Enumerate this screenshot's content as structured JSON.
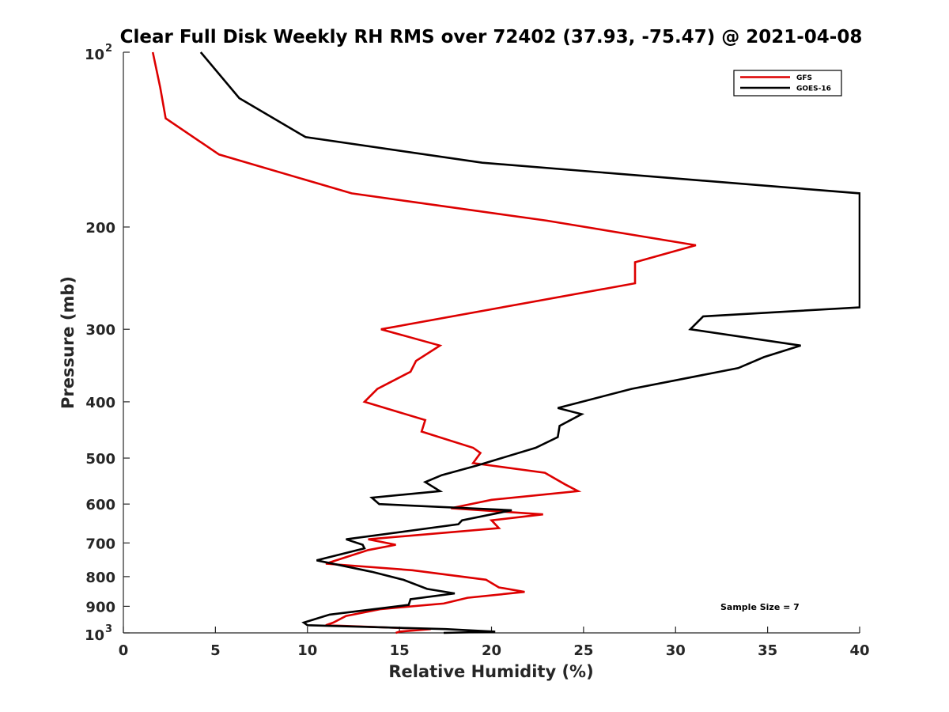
{
  "chart_data": {
    "type": "line",
    "title": "Clear Full Disk Weekly RH RMS over 72402 (37.93, -75.47) @ 2021-04-08",
    "xlabel": "Relative Humidity (%)",
    "ylabel": "Pressure (mb)",
    "xlim": [
      0,
      40
    ],
    "ylim": [
      100,
      1000
    ],
    "yscale": "log",
    "y_reversed": true,
    "xticks": [
      0,
      5,
      10,
      15,
      20,
      25,
      30,
      35,
      40
    ],
    "xtick_labels": [
      "0",
      "5",
      "10",
      "15",
      "20",
      "25",
      "30",
      "35",
      "40"
    ],
    "yticks": [
      {
        "value": 100,
        "base": "10",
        "exp": "2"
      },
      {
        "value": 200,
        "label": "200"
      },
      {
        "value": 300,
        "label": "300"
      },
      {
        "value": 400,
        "label": "400"
      },
      {
        "value": 500,
        "label": "500"
      },
      {
        "value": 600,
        "label": "600"
      },
      {
        "value": 700,
        "label": "700"
      },
      {
        "value": 800,
        "label": "800"
      },
      {
        "value": 900,
        "label": "900"
      },
      {
        "value": 1000,
        "base": "10",
        "exp": "3"
      }
    ],
    "legend_position": "top-right",
    "annotation": "Sample Size = 7",
    "series": [
      {
        "name": "GFS",
        "color": "#dd0000",
        "points": [
          [
            1.6,
            100
          ],
          [
            2.0,
            115
          ],
          [
            2.3,
            130
          ],
          [
            5.2,
            150
          ],
          [
            12.4,
            175
          ],
          [
            23.0,
            195
          ],
          [
            31.1,
            215
          ],
          [
            27.8,
            230
          ],
          [
            27.8,
            250
          ],
          [
            14.0,
            300
          ],
          [
            17.2,
            320
          ],
          [
            15.9,
            340
          ],
          [
            15.6,
            355
          ],
          [
            13.8,
            380
          ],
          [
            13.1,
            400
          ],
          [
            16.4,
            430
          ],
          [
            16.2,
            450
          ],
          [
            19.0,
            480
          ],
          [
            19.4,
            490
          ],
          [
            19.0,
            510
          ],
          [
            22.9,
            530
          ],
          [
            24.0,
            555
          ],
          [
            24.7,
            570
          ],
          [
            20.0,
            590
          ],
          [
            17.8,
            610
          ],
          [
            22.8,
            625
          ],
          [
            20.0,
            640
          ],
          [
            20.4,
            660
          ],
          [
            13.3,
            690
          ],
          [
            14.8,
            705
          ],
          [
            13.3,
            720
          ],
          [
            11.0,
            760
          ],
          [
            15.7,
            780
          ],
          [
            19.7,
            810
          ],
          [
            20.4,
            835
          ],
          [
            21.8,
            850
          ],
          [
            18.7,
            870
          ],
          [
            17.4,
            890
          ],
          [
            14.0,
            910
          ],
          [
            12.1,
            935
          ],
          [
            11.4,
            960
          ],
          [
            11.0,
            970
          ],
          [
            16.7,
            985
          ],
          [
            15.0,
            995
          ],
          [
            14.8,
            1000
          ]
        ]
      },
      {
        "name": "GOES-16",
        "color": "#000000",
        "points": [
          [
            4.2,
            100
          ],
          [
            6.3,
            120
          ],
          [
            9.9,
            140
          ],
          [
            19.5,
            155
          ],
          [
            40.0,
            175
          ],
          [
            40.0,
            275
          ],
          [
            31.5,
            285
          ],
          [
            30.8,
            300
          ],
          [
            36.8,
            320
          ],
          [
            34.8,
            335
          ],
          [
            33.4,
            350
          ],
          [
            27.6,
            380
          ],
          [
            23.6,
            410
          ],
          [
            24.9,
            420
          ],
          [
            23.7,
            440
          ],
          [
            23.6,
            460
          ],
          [
            22.4,
            480
          ],
          [
            19.2,
            515
          ],
          [
            17.3,
            535
          ],
          [
            16.4,
            550
          ],
          [
            17.2,
            570
          ],
          [
            13.5,
            585
          ],
          [
            13.9,
            600
          ],
          [
            21.1,
            615
          ],
          [
            18.4,
            640
          ],
          [
            18.2,
            650
          ],
          [
            12.1,
            690
          ],
          [
            13.0,
            705
          ],
          [
            13.1,
            715
          ],
          [
            10.5,
            750
          ],
          [
            13.5,
            785
          ],
          [
            15.2,
            810
          ],
          [
            16.5,
            840
          ],
          [
            18.0,
            855
          ],
          [
            15.6,
            875
          ],
          [
            15.5,
            895
          ],
          [
            11.2,
            930
          ],
          [
            9.8,
            960
          ],
          [
            10.0,
            970
          ],
          [
            17.5,
            985
          ],
          [
            20.2,
            995
          ],
          [
            17.4,
            1000
          ]
        ]
      }
    ]
  }
}
